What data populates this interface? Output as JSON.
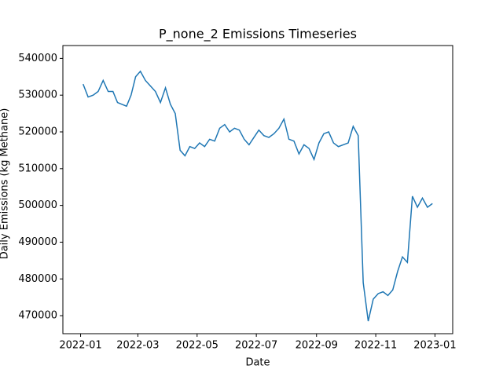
{
  "chart_data": {
    "type": "line",
    "title": "P_none_2 Emissions Timeseries",
    "x_label": "Date",
    "y_label": "Daily Emissions (kg Methane)",
    "x": [
      "2022-01",
      "2022-01",
      "2022-01",
      "2022-01",
      "2022-01",
      "2022-01",
      "2022-02",
      "2022-02",
      "2022-02",
      "2022-02",
      "2022-02",
      "2022-02",
      "2022-03",
      "2022-03",
      "2022-03",
      "2022-03",
      "2022-03",
      "2022-03",
      "2022-04",
      "2022-04",
      "2022-04",
      "2022-04",
      "2022-04",
      "2022-04",
      "2022-05",
      "2022-05",
      "2022-05",
      "2022-05",
      "2022-05",
      "2022-05",
      "2022-06",
      "2022-06",
      "2022-06",
      "2022-06",
      "2022-06",
      "2022-06",
      "2022-07",
      "2022-07",
      "2022-07",
      "2022-07",
      "2022-07",
      "2022-07",
      "2022-08",
      "2022-08",
      "2022-08",
      "2022-08",
      "2022-08",
      "2022-08",
      "2022-09",
      "2022-09",
      "2022-09",
      "2022-09",
      "2022-09",
      "2022-09",
      "2022-10",
      "2022-10",
      "2022-10",
      "2022-10",
      "2022-10",
      "2022-10",
      "2022-11",
      "2022-11",
      "2022-11",
      "2022-11",
      "2022-11",
      "2022-11",
      "2022-12",
      "2022-12",
      "2022-12",
      "2022-12",
      "2022-12",
      "2022-12"
    ],
    "series": [
      {
        "name": "P_none_2",
        "color": "#1f77b4",
        "values": [
          533000,
          529500,
          530000,
          531000,
          534000,
          531000,
          531000,
          528000,
          527500,
          527000,
          530000,
          535000,
          536500,
          534000,
          532500,
          531000,
          528000,
          532000,
          527500,
          525000,
          515000,
          513500,
          516000,
          515500,
          517000,
          516000,
          518000,
          517500,
          521000,
          522000,
          520000,
          521000,
          520500,
          518000,
          516500,
          518500,
          520500,
          519000,
          518500,
          519500,
          521000,
          523500,
          518000,
          517500,
          514000,
          516500,
          515500,
          512500,
          517000,
          519500,
          520000,
          517000,
          516000,
          516500,
          517000,
          521500,
          519000,
          479000,
          468500,
          474500,
          476000,
          476500,
          475500,
          477000,
          482000,
          486000,
          484500,
          502500,
          499500,
          502000,
          499500,
          500500
        ]
      }
    ],
    "xlim": [
      "2022-01",
      "2023-01"
    ],
    "xticks": [
      "2022-01",
      "2022-03",
      "2022-05",
      "2022-07",
      "2022-09",
      "2022-11",
      "2023-01"
    ],
    "ylim": [
      465100,
      543500
    ],
    "yticks": [
      470000,
      480000,
      490000,
      500000,
      510000,
      520000,
      530000,
      540000
    ]
  }
}
